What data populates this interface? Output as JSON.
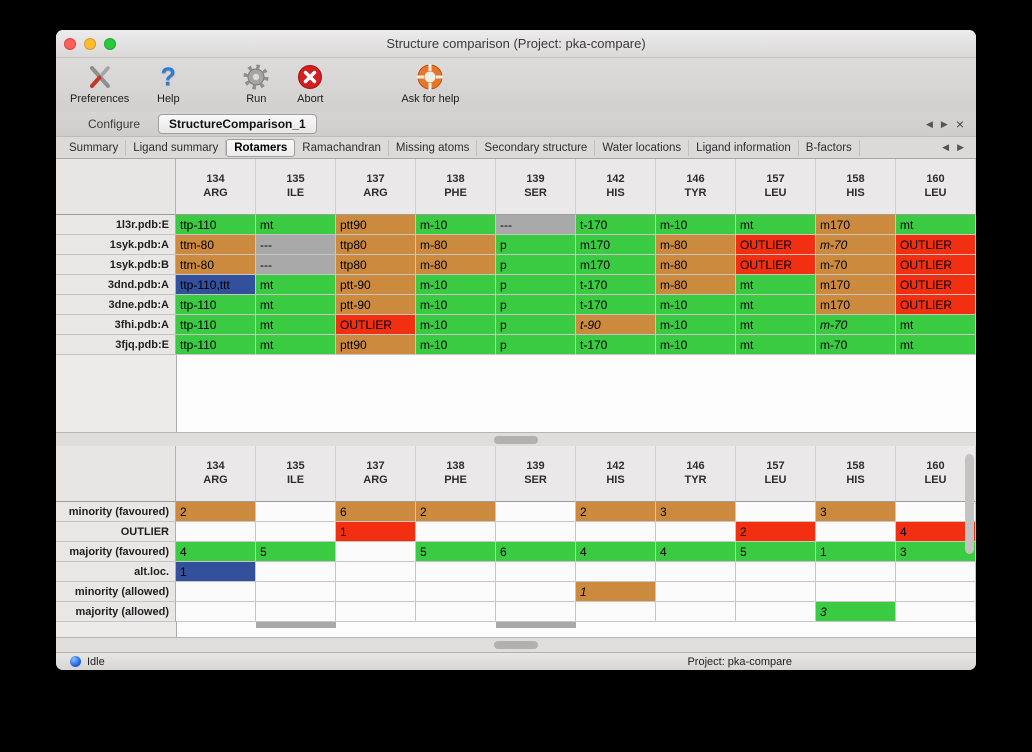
{
  "window": {
    "title": "Structure comparison (Project: pka-compare)"
  },
  "toolbar": {
    "items": [
      {
        "label": "Preferences"
      },
      {
        "label": "Help"
      },
      {
        "label": "Run"
      },
      {
        "label": "Abort"
      },
      {
        "label": "Ask for help"
      }
    ]
  },
  "tab_bar": {
    "tabs": [
      {
        "label": "Configure",
        "active": false
      },
      {
        "label": "StructureComparison_1",
        "active": true
      }
    ],
    "nav": {
      "prev": "◀",
      "next": "▶",
      "close": "×"
    }
  },
  "subtab_bar": {
    "tabs": [
      "Summary",
      "Ligand summary",
      "Rotamers",
      "Ramachandran",
      "Missing atoms",
      "Secondary structure",
      "Water locations",
      "Ligand information",
      "B-factors"
    ],
    "active": "Rotamers",
    "nav": {
      "prev": "◀",
      "next": "▶"
    }
  },
  "columns": [
    {
      "number": "134",
      "residue": "ARG"
    },
    {
      "number": "135",
      "residue": "ILE"
    },
    {
      "number": "137",
      "residue": "ARG"
    },
    {
      "number": "138",
      "residue": "PHE"
    },
    {
      "number": "139",
      "residue": "SER"
    },
    {
      "number": "142",
      "residue": "HIS"
    },
    {
      "number": "146",
      "residue": "TYR"
    },
    {
      "number": "157",
      "residue": "LEU"
    },
    {
      "number": "158",
      "residue": "HIS"
    },
    {
      "number": "160",
      "residue": "LEU"
    }
  ],
  "colors": {
    "green": "#3acb42",
    "tan": "#cc8a3e",
    "red": "#f23011",
    "gray": "#a9a9a9",
    "blue": "#32509b",
    "none": "transparent"
  },
  "upper_table": {
    "rows": [
      {
        "label": "1l3r.pdb:E",
        "cells": [
          {
            "text": "ttp-110",
            "color": "green"
          },
          {
            "text": "mt",
            "color": "green"
          },
          {
            "text": "ptt90",
            "color": "tan"
          },
          {
            "text": "m-10",
            "color": "green"
          },
          {
            "text": "---",
            "color": "gray"
          },
          {
            "text": "t-170",
            "color": "green"
          },
          {
            "text": "m-10",
            "color": "green"
          },
          {
            "text": "mt",
            "color": "green"
          },
          {
            "text": "m170",
            "color": "tan"
          },
          {
            "text": "mt",
            "color": "green"
          }
        ]
      },
      {
        "label": "1syk.pdb:A",
        "cells": [
          {
            "text": "ttm-80",
            "color": "tan"
          },
          {
            "text": "---",
            "color": "gray"
          },
          {
            "text": "ttp80",
            "color": "tan"
          },
          {
            "text": "m-80",
            "color": "tan"
          },
          {
            "text": "p",
            "color": "green"
          },
          {
            "text": "m170",
            "color": "green"
          },
          {
            "text": "m-80",
            "color": "tan"
          },
          {
            "text": "OUTLIER",
            "color": "red"
          },
          {
            "text": "m-70",
            "color": "tan",
            "italic": true
          },
          {
            "text": "OUTLIER",
            "color": "red"
          }
        ]
      },
      {
        "label": "1syk.pdb:B",
        "cells": [
          {
            "text": "ttm-80",
            "color": "tan"
          },
          {
            "text": "---",
            "color": "gray"
          },
          {
            "text": "ttp80",
            "color": "tan"
          },
          {
            "text": "m-80",
            "color": "tan"
          },
          {
            "text": "p",
            "color": "green"
          },
          {
            "text": "m170",
            "color": "green"
          },
          {
            "text": "m-80",
            "color": "tan"
          },
          {
            "text": "OUTLIER",
            "color": "red"
          },
          {
            "text": "m-70",
            "color": "tan"
          },
          {
            "text": "OUTLIER",
            "color": "red"
          }
        ]
      },
      {
        "label": "3dnd.pdb:A",
        "cells": [
          {
            "text": "ttp-110,ttt",
            "color": "blue"
          },
          {
            "text": "mt",
            "color": "green"
          },
          {
            "text": "ptt-90",
            "color": "tan"
          },
          {
            "text": "m-10",
            "color": "green"
          },
          {
            "text": "p",
            "color": "green"
          },
          {
            "text": "t-170",
            "color": "green"
          },
          {
            "text": "m-80",
            "color": "tan"
          },
          {
            "text": "mt",
            "color": "green"
          },
          {
            "text": "m170",
            "color": "tan"
          },
          {
            "text": "OUTLIER",
            "color": "red"
          }
        ]
      },
      {
        "label": "3dne.pdb:A",
        "cells": [
          {
            "text": "ttp-110",
            "color": "green"
          },
          {
            "text": "mt",
            "color": "green"
          },
          {
            "text": "ptt-90",
            "color": "tan"
          },
          {
            "text": "m-10",
            "color": "green"
          },
          {
            "text": "p",
            "color": "green"
          },
          {
            "text": "t-170",
            "color": "green"
          },
          {
            "text": "m-10",
            "color": "green"
          },
          {
            "text": "mt",
            "color": "green"
          },
          {
            "text": "m170",
            "color": "tan"
          },
          {
            "text": "OUTLIER",
            "color": "red"
          }
        ]
      },
      {
        "label": "3fhi.pdb:A",
        "cells": [
          {
            "text": "ttp-110",
            "color": "green"
          },
          {
            "text": "mt",
            "color": "green"
          },
          {
            "text": "OUTLIER",
            "color": "red"
          },
          {
            "text": "m-10",
            "color": "green"
          },
          {
            "text": "p",
            "color": "green"
          },
          {
            "text": "t-90",
            "color": "tan",
            "italic": true
          },
          {
            "text": "m-10",
            "color": "green"
          },
          {
            "text": "mt",
            "color": "green"
          },
          {
            "text": "m-70",
            "color": "green",
            "italic": true
          },
          {
            "text": "mt",
            "color": "green"
          }
        ]
      },
      {
        "label": "3fjq.pdb:E",
        "cells": [
          {
            "text": "ttp-110",
            "color": "green"
          },
          {
            "text": "mt",
            "color": "green"
          },
          {
            "text": "ptt90",
            "color": "tan"
          },
          {
            "text": "m-10",
            "color": "green"
          },
          {
            "text": "p",
            "color": "green"
          },
          {
            "text": "t-170",
            "color": "green"
          },
          {
            "text": "m-10",
            "color": "green"
          },
          {
            "text": "mt",
            "color": "green"
          },
          {
            "text": "m-70",
            "color": "green"
          },
          {
            "text": "mt",
            "color": "green"
          }
        ]
      }
    ]
  },
  "lower_table": {
    "rows": [
      {
        "label": "minority (favoured)",
        "cells": [
          {
            "text": "2",
            "color": "tan"
          },
          {
            "text": "",
            "color": "none"
          },
          {
            "text": "6",
            "color": "tan"
          },
          {
            "text": "2",
            "color": "tan"
          },
          {
            "text": "",
            "color": "none"
          },
          {
            "text": "2",
            "color": "tan"
          },
          {
            "text": "3",
            "color": "tan"
          },
          {
            "text": "",
            "color": "none"
          },
          {
            "text": "3",
            "color": "tan"
          },
          {
            "text": "",
            "color": "none"
          }
        ]
      },
      {
        "label": "OUTLIER",
        "cells": [
          {
            "text": "",
            "color": "none"
          },
          {
            "text": "",
            "color": "none"
          },
          {
            "text": "1",
            "color": "red"
          },
          {
            "text": "",
            "color": "none"
          },
          {
            "text": "",
            "color": "none"
          },
          {
            "text": "",
            "color": "none"
          },
          {
            "text": "",
            "color": "none"
          },
          {
            "text": "2",
            "color": "red"
          },
          {
            "text": "",
            "color": "none"
          },
          {
            "text": "4",
            "color": "red"
          }
        ]
      },
      {
        "label": "majority (favoured)",
        "cells": [
          {
            "text": "4",
            "color": "green"
          },
          {
            "text": "5",
            "color": "green"
          },
          {
            "text": "",
            "color": "none"
          },
          {
            "text": "5",
            "color": "green"
          },
          {
            "text": "6",
            "color": "green"
          },
          {
            "text": "4",
            "color": "green"
          },
          {
            "text": "4",
            "color": "green"
          },
          {
            "text": "5",
            "color": "green"
          },
          {
            "text": "1",
            "color": "green"
          },
          {
            "text": "3",
            "color": "green"
          }
        ]
      },
      {
        "label": "alt.loc.",
        "cells": [
          {
            "text": "1",
            "color": "blue"
          },
          {
            "text": "",
            "color": "none"
          },
          {
            "text": "",
            "color": "none"
          },
          {
            "text": "",
            "color": "none"
          },
          {
            "text": "",
            "color": "none"
          },
          {
            "text": "",
            "color": "none"
          },
          {
            "text": "",
            "color": "none"
          },
          {
            "text": "",
            "color": "none"
          },
          {
            "text": "",
            "color": "none"
          },
          {
            "text": "",
            "color": "none"
          }
        ]
      },
      {
        "label": "minority (allowed)",
        "cells": [
          {
            "text": "",
            "color": "none"
          },
          {
            "text": "",
            "color": "none"
          },
          {
            "text": "",
            "color": "none"
          },
          {
            "text": "",
            "color": "none"
          },
          {
            "text": "",
            "color": "none"
          },
          {
            "text": "1",
            "color": "tan",
            "italic": true
          },
          {
            "text": "",
            "color": "none"
          },
          {
            "text": "",
            "color": "none"
          },
          {
            "text": "",
            "color": "none"
          },
          {
            "text": "",
            "color": "none"
          }
        ]
      },
      {
        "label": "majority (allowed)",
        "cells": [
          {
            "text": "",
            "color": "none"
          },
          {
            "text": "",
            "color": "none"
          },
          {
            "text": "",
            "color": "none"
          },
          {
            "text": "",
            "color": "none"
          },
          {
            "text": "",
            "color": "none"
          },
          {
            "text": "",
            "color": "none"
          },
          {
            "text": "",
            "color": "none"
          },
          {
            "text": "",
            "color": "none"
          },
          {
            "text": "3",
            "color": "green",
            "italic": true
          },
          {
            "text": "",
            "color": "none"
          }
        ]
      }
    ],
    "partial_columns": [
      "135",
      "139"
    ]
  },
  "status_bar": {
    "state": "Idle",
    "project": "Project: pka-compare"
  }
}
